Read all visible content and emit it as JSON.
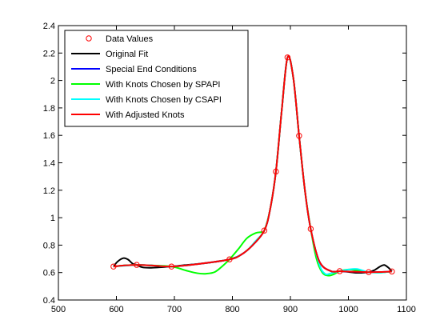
{
  "chart_data": {
    "type": "line",
    "title": "",
    "xlabel": "",
    "ylabel": "",
    "xlim": [
      500,
      1100
    ],
    "ylim": [
      0.4,
      2.4
    ],
    "xticks": [
      500,
      600,
      700,
      800,
      900,
      1000,
      1100
    ],
    "yticks": [
      0.4,
      0.6,
      0.8,
      1,
      1.2,
      1.4,
      1.6,
      1.8,
      2,
      2.2,
      2.4
    ],
    "grid": false,
    "legend_position": "top-left",
    "series": [
      {
        "name": "Data Values",
        "kind": "markers",
        "color": "#ff0000",
        "x": [
          595,
          635,
          695,
          795,
          855,
          875,
          895,
          915,
          935,
          985,
          1035,
          1075
        ],
        "y": [
          0.644,
          0.656,
          0.644,
          0.696,
          0.906,
          1.336,
          2.168,
          1.597,
          0.918,
          0.61,
          0.603,
          0.608
        ]
      },
      {
        "name": "Original Fit",
        "kind": "line",
        "color": "#000000",
        "x": [
          595,
          602,
          612,
          620,
          628,
          635,
          645,
          660,
          680,
          695,
          720,
          760,
          795,
          815,
          835,
          855,
          865,
          875,
          885,
          895,
          905,
          915,
          925,
          935,
          950,
          970,
          985,
          1000,
          1015,
          1035,
          1045,
          1055,
          1062,
          1070,
          1075
        ],
        "y": [
          0.644,
          0.68,
          0.705,
          0.695,
          0.665,
          0.656,
          0.638,
          0.635,
          0.64,
          0.644,
          0.655,
          0.672,
          0.696,
          0.73,
          0.8,
          0.906,
          1.06,
          1.336,
          1.78,
          2.168,
          2.02,
          1.597,
          1.2,
          0.918,
          0.68,
          0.61,
          0.61,
          0.605,
          0.598,
          0.603,
          0.618,
          0.645,
          0.655,
          0.632,
          0.608
        ]
      },
      {
        "name": "Special End Conditions",
        "kind": "line",
        "color": "#0000ff",
        "x": [
          595,
          615,
          635,
          660,
          695,
          740,
          795,
          815,
          835,
          855,
          865,
          875,
          885,
          895,
          905,
          915,
          925,
          935,
          950,
          970,
          985,
          1010,
          1035,
          1055,
          1075
        ],
        "y": [
          0.644,
          0.652,
          0.656,
          0.652,
          0.644,
          0.662,
          0.696,
          0.73,
          0.8,
          0.906,
          1.06,
          1.336,
          1.78,
          2.168,
          2.02,
          1.597,
          1.2,
          0.918,
          0.68,
          0.61,
          0.61,
          0.606,
          0.603,
          0.604,
          0.608
        ]
      },
      {
        "name": "With Knots Chosen by SPAPI",
        "kind": "line",
        "color": "#00ff00",
        "x": [
          595,
          615,
          635,
          660,
          695,
          720,
          740,
          755,
          770,
          785,
          795,
          810,
          825,
          840,
          850,
          855,
          865,
          875,
          885,
          895,
          905,
          915,
          925,
          935,
          945,
          955,
          965,
          975,
          985,
          1000,
          1015,
          1035,
          1055,
          1075
        ],
        "y": [
          0.644,
          0.652,
          0.656,
          0.652,
          0.644,
          0.615,
          0.595,
          0.592,
          0.605,
          0.655,
          0.696,
          0.77,
          0.85,
          0.888,
          0.895,
          0.906,
          1.06,
          1.336,
          1.78,
          2.168,
          2.02,
          1.597,
          1.2,
          0.918,
          0.7,
          0.6,
          0.578,
          0.588,
          0.61,
          0.622,
          0.616,
          0.603,
          0.6,
          0.608
        ]
      },
      {
        "name": "With Knots Chosen by CSAPI",
        "kind": "line",
        "color": "#00ffff",
        "x": [
          595,
          615,
          635,
          660,
          695,
          740,
          795,
          810,
          825,
          840,
          855,
          865,
          875,
          885,
          895,
          905,
          915,
          925,
          935,
          950,
          960,
          970,
          985,
          1000,
          1015,
          1035,
          1055,
          1075
        ],
        "y": [
          0.644,
          0.65,
          0.656,
          0.652,
          0.644,
          0.662,
          0.696,
          0.72,
          0.76,
          0.83,
          0.906,
          1.06,
          1.336,
          1.78,
          2.168,
          2.02,
          1.597,
          1.2,
          0.918,
          0.66,
          0.59,
          0.595,
          0.61,
          0.622,
          0.626,
          0.603,
          0.6,
          0.608
        ]
      },
      {
        "name": "With Adjusted Knots",
        "kind": "line",
        "color": "#ff0000",
        "x": [
          595,
          615,
          635,
          660,
          695,
          740,
          795,
          815,
          835,
          855,
          865,
          875,
          885,
          895,
          905,
          915,
          925,
          935,
          950,
          970,
          985,
          1010,
          1035,
          1055,
          1075
        ],
        "y": [
          0.644,
          0.652,
          0.656,
          0.652,
          0.644,
          0.662,
          0.696,
          0.73,
          0.8,
          0.906,
          1.06,
          1.336,
          1.78,
          2.168,
          2.02,
          1.597,
          1.2,
          0.918,
          0.68,
          0.61,
          0.61,
          0.606,
          0.603,
          0.604,
          0.608
        ]
      }
    ]
  }
}
